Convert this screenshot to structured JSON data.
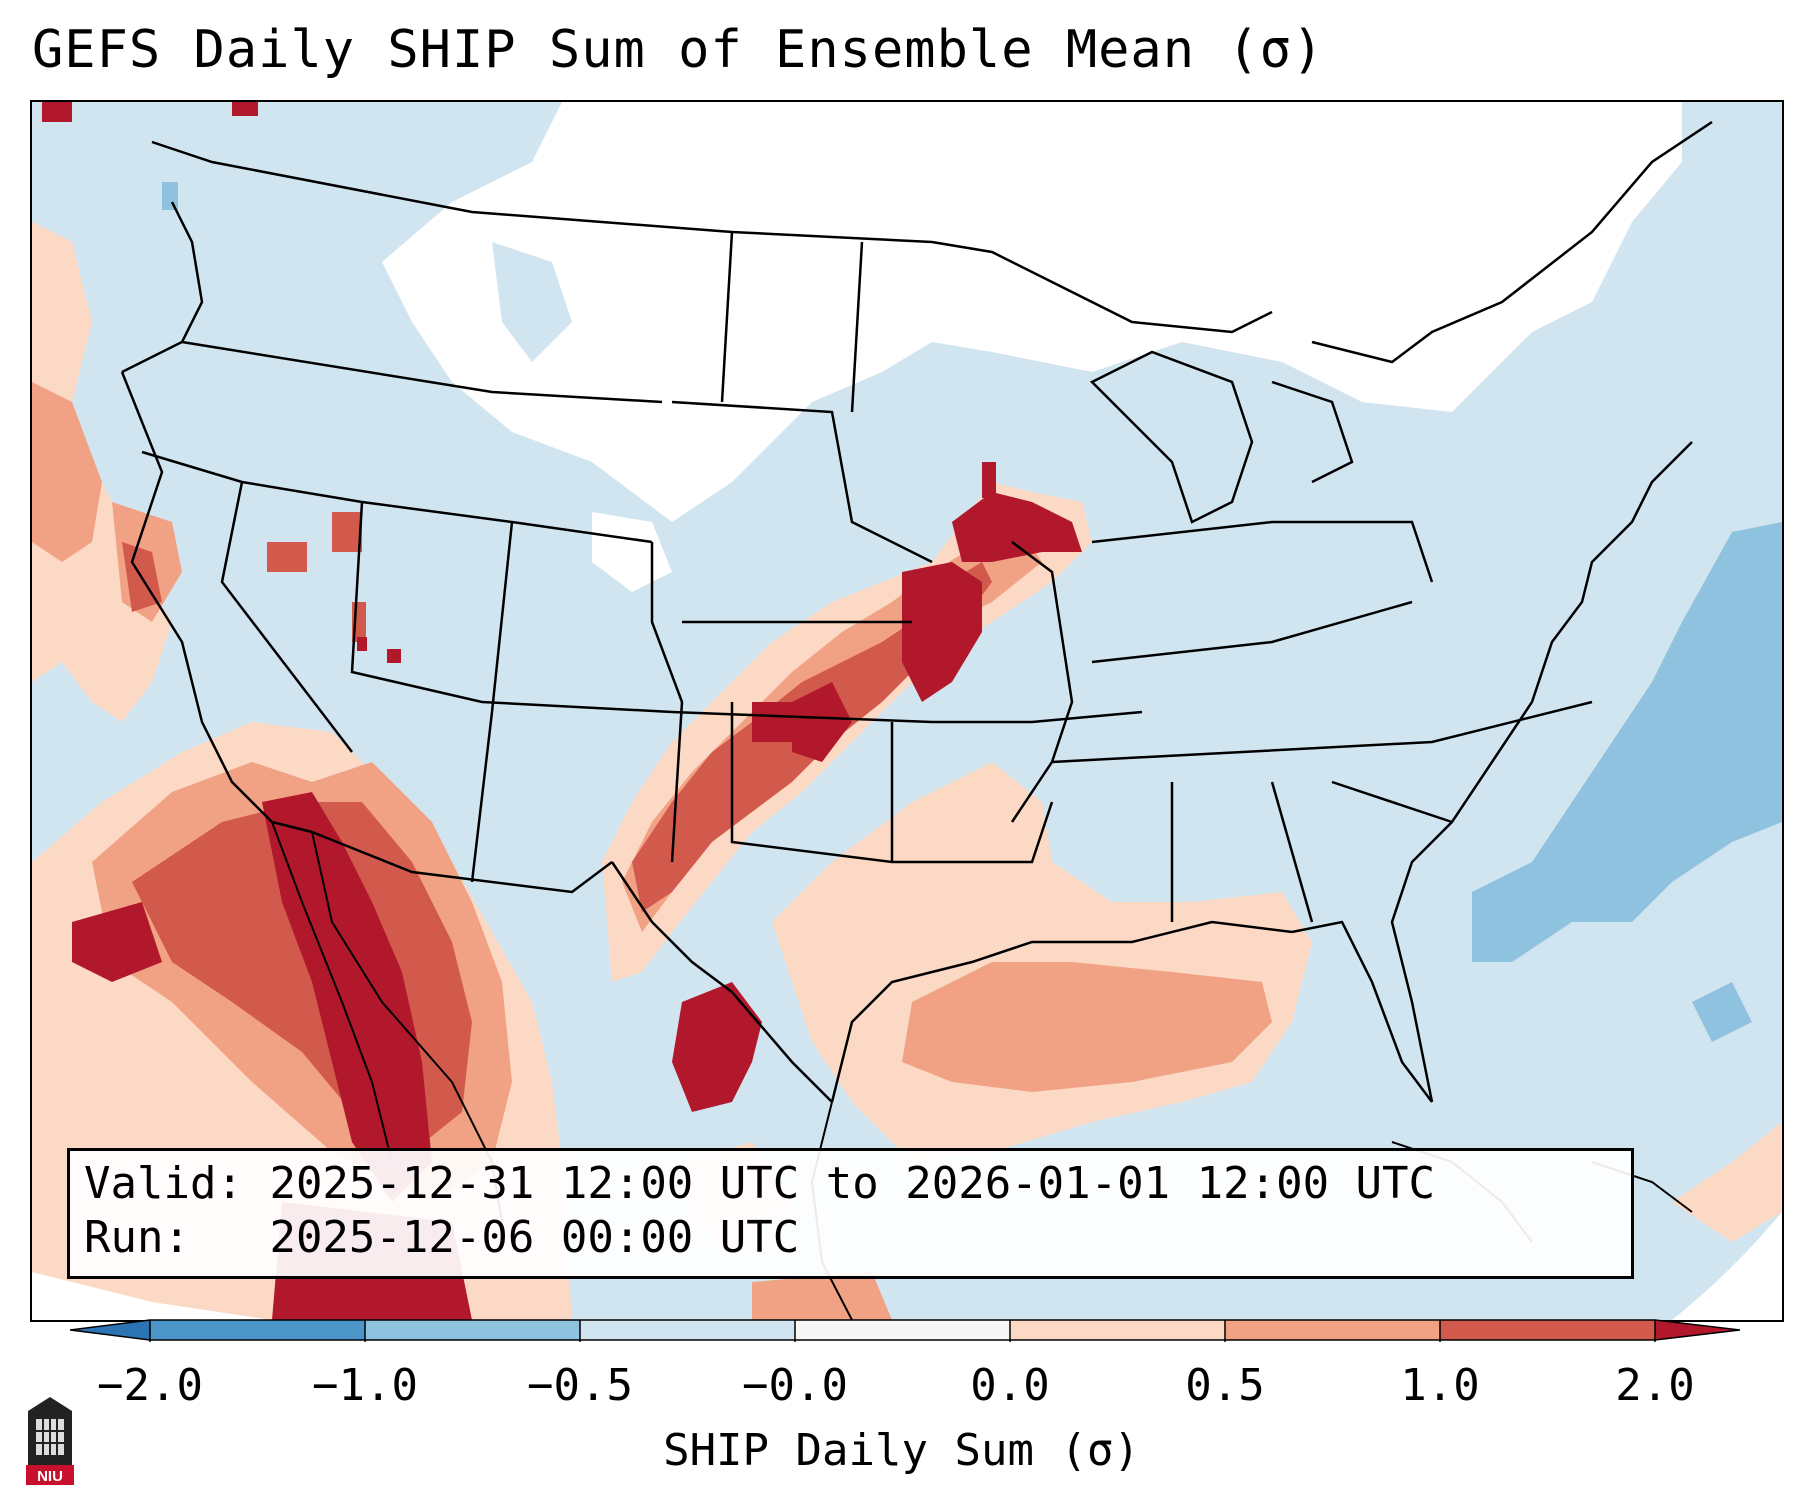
{
  "title": "GEFS Daily SHIP Sum of Ensemble Mean (σ)",
  "info": {
    "valid_label": "Valid:",
    "valid_value": "2025-12-31 12:00 UTC to 2026-01-01 12:00 UTC",
    "run_label": "Run:",
    "run_value": "2025-12-06 00:00 UTC"
  },
  "colorbar": {
    "label": "SHIP Daily Sum (σ)",
    "ticks": [
      "−2.0",
      "−1.0",
      "−0.5",
      "−0.0",
      "0.0",
      "0.5",
      "1.0",
      "2.0"
    ],
    "bins": [
      {
        "range": "<= -2.0",
        "color": "#2c73b4"
      },
      {
        "range": "-2.0 to -1.0",
        "color": "#4b95c9"
      },
      {
        "range": "-1.0 to -0.5",
        "color": "#8fc2de"
      },
      {
        "range": "-0.5 to -0.0",
        "color": "#d1e5f0"
      },
      {
        "range": "-0.0 to 0.0",
        "color": "#f7f7f7"
      },
      {
        "range": "0.0 to 0.5",
        "color": "#fcd9c5"
      },
      {
        "range": "0.5 to 1.0",
        "color": "#f1a284"
      },
      {
        "range": "1.0 to 2.0",
        "color": "#d25a4d"
      },
      {
        "range": ">= 2.0",
        "color": "#b2182b"
      }
    ]
  },
  "logo": {
    "text": "NIU"
  }
}
